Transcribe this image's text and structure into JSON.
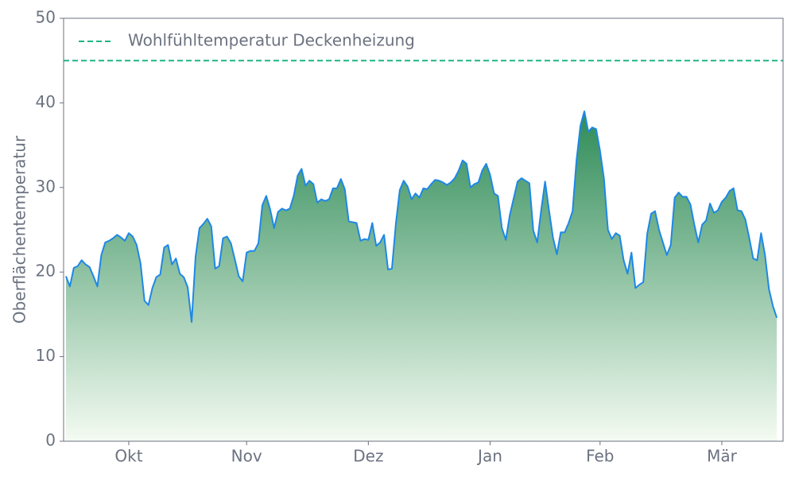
{
  "chart_data": {
    "type": "area",
    "ylabel": "Oberflächentemperatur",
    "ylim": [
      0,
      50
    ],
    "yticks": [
      0,
      10,
      20,
      30,
      40,
      50
    ],
    "xlim": [
      -0.6,
      182.6
    ],
    "xticks": [
      {
        "value": 16,
        "label": "Okt"
      },
      {
        "value": 46,
        "label": "Nov"
      },
      {
        "value": 77,
        "label": "Dez"
      },
      {
        "value": 108,
        "label": "Jan"
      },
      {
        "value": 136,
        "label": "Feb"
      },
      {
        "value": 167,
        "label": "Mär"
      }
    ],
    "x": [
      0,
      1,
      2,
      3,
      4,
      5,
      6,
      7,
      8,
      9,
      10,
      11,
      12,
      13,
      14,
      15,
      16,
      17,
      18,
      19,
      20,
      21,
      22,
      23,
      24,
      25,
      26,
      27,
      28,
      29,
      30,
      31,
      32,
      33,
      34,
      35,
      36,
      37,
      38,
      39,
      40,
      41,
      42,
      43,
      44,
      45,
      46,
      47,
      48,
      49,
      50,
      51,
      52,
      53,
      54,
      55,
      56,
      57,
      58,
      59,
      60,
      61,
      62,
      63,
      64,
      65,
      66,
      67,
      68,
      69,
      70,
      71,
      72,
      73,
      74,
      75,
      76,
      77,
      78,
      79,
      80,
      81,
      82,
      83,
      84,
      85,
      86,
      87,
      88,
      89,
      90,
      91,
      92,
      93,
      94,
      95,
      96,
      97,
      98,
      99,
      100,
      101,
      102,
      103,
      104,
      105,
      106,
      107,
      108,
      109,
      110,
      111,
      112,
      113,
      114,
      115,
      116,
      117,
      118,
      119,
      120,
      121,
      122,
      123,
      124,
      125,
      126,
      127,
      128,
      129,
      130,
      131,
      132,
      133,
      134,
      135,
      136,
      137,
      138,
      139,
      140,
      141,
      142,
      143,
      144,
      145,
      146,
      147,
      148,
      149,
      150,
      151,
      152,
      153,
      154,
      155,
      156,
      157,
      158,
      159,
      160,
      161,
      162,
      163,
      164,
      165,
      166,
      167,
      168,
      169,
      170,
      171,
      172,
      173,
      174,
      175,
      176,
      177,
      178,
      179,
      180,
      181
    ],
    "series": [
      {
        "color": "#1e88e5",
        "fill_top": "#2e8b57",
        "fill_bottom": "#f4fbf2",
        "values": [
          19.5,
          18.3,
          20.5,
          20.7,
          21.4,
          20.9,
          20.6,
          19.5,
          18.3,
          22.0,
          23.5,
          23.7,
          24.0,
          24.4,
          24.1,
          23.7,
          24.6,
          24.2,
          23.2,
          21.0,
          16.6,
          16.1,
          18.1,
          19.4,
          19.7,
          22.9,
          23.2,
          20.9,
          21.6,
          19.8,
          19.4,
          18.2,
          14.1,
          21.8,
          25.2,
          25.7,
          26.3,
          25.4,
          20.4,
          20.7,
          24.0,
          24.2,
          23.4,
          21.5,
          19.5,
          18.9,
          22.3,
          22.5,
          22.5,
          23.4,
          27.9,
          29.0,
          27.4,
          25.2,
          27.1,
          27.5,
          27.3,
          27.5,
          29.0,
          31.4,
          32.2,
          30.2,
          30.8,
          30.4,
          28.2,
          28.6,
          28.4,
          28.6,
          29.9,
          29.9,
          31.0,
          29.8,
          26.0,
          25.9,
          25.8,
          23.7,
          23.9,
          23.8,
          25.8,
          23.1,
          23.5,
          24.4,
          20.3,
          20.4,
          25.7,
          29.7,
          30.8,
          30.1,
          28.6,
          29.3,
          28.8,
          29.9,
          29.8,
          30.4,
          30.9,
          30.8,
          30.6,
          30.3,
          30.6,
          31.1,
          32.0,
          33.2,
          32.8,
          30.0,
          30.4,
          30.6,
          32.0,
          32.8,
          31.5,
          29.3,
          29.0,
          25.2,
          23.8,
          26.7,
          28.7,
          30.7,
          31.1,
          30.8,
          30.5,
          24.9,
          23.5,
          27.3,
          30.7,
          27.3,
          24.1,
          22.1,
          24.7,
          24.7,
          25.8,
          27.2,
          33.2,
          37.3,
          39.0,
          36.6,
          37.1,
          36.9,
          34.3,
          31.0,
          25.0,
          23.9,
          24.6,
          24.3,
          21.4,
          19.8,
          22.3,
          18.1,
          18.5,
          18.8,
          24.5,
          26.9,
          27.2,
          25.0,
          23.5,
          22.0,
          23.2,
          28.8,
          29.4,
          28.9,
          28.9,
          28.0,
          25.6,
          23.5,
          25.6,
          26.1,
          28.1,
          27.0,
          27.3,
          28.3,
          28.8,
          29.6,
          29.9,
          27.3,
          27.2,
          26.2,
          24.0,
          21.6,
          21.4,
          24.6,
          22.0,
          18.0,
          16.0,
          14.6
        ]
      }
    ],
    "reference_lines": [
      {
        "value": 45,
        "label": "Wohlfühltemperatur Deckenheizung",
        "color": "#1db584"
      }
    ],
    "legend": "upper left"
  }
}
